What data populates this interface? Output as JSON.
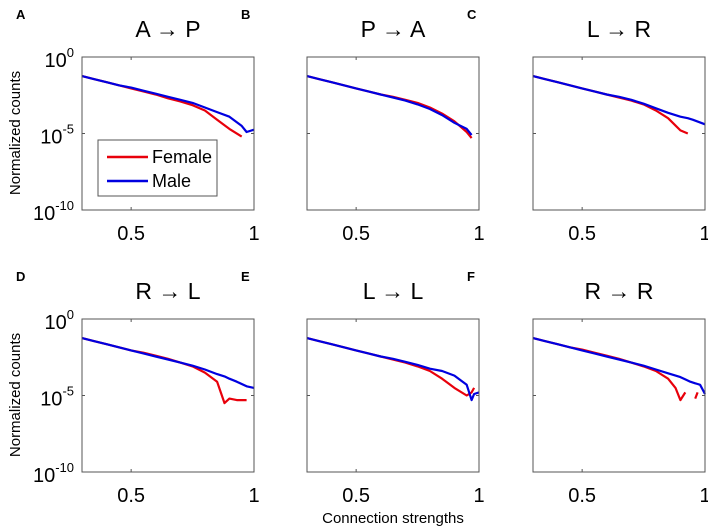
{
  "chart_data": [
    {
      "type": "line",
      "panel": "A",
      "title": "A → P",
      "xlim": [
        0.3,
        1
      ],
      "ylim_log10": [
        -10,
        0
      ],
      "yscale": "log",
      "x": [
        0.3,
        0.35,
        0.4,
        0.45,
        0.5,
        0.55,
        0.6,
        0.65,
        0.7,
        0.75,
        0.8,
        0.85,
        0.9,
        0.95,
        0.97,
        1.0
      ],
      "series": [
        {
          "name": "Female",
          "color": "#e8000b",
          "log10_values": [
            -1.25,
            -1.45,
            -1.65,
            -1.85,
            -2.05,
            -2.25,
            -2.45,
            -2.7,
            -2.9,
            -3.15,
            -3.5,
            -4.1,
            -4.7,
            -5.2,
            null,
            null
          ]
        },
        {
          "name": "Male",
          "color": "#0000e0",
          "log10_values": [
            -1.25,
            -1.45,
            -1.65,
            -1.85,
            -2.0,
            -2.2,
            -2.4,
            -2.6,
            -2.8,
            -3.0,
            -3.3,
            -3.6,
            -3.9,
            -4.5,
            -4.9,
            -4.75
          ]
        }
      ]
    },
    {
      "type": "line",
      "panel": "B",
      "title": "P → A",
      "xlim": [
        0.3,
        1
      ],
      "ylim_log10": [
        -10,
        0
      ],
      "yscale": "log",
      "x": [
        0.3,
        0.35,
        0.4,
        0.45,
        0.5,
        0.55,
        0.6,
        0.65,
        0.7,
        0.75,
        0.8,
        0.85,
        0.9,
        0.95,
        0.97,
        1.0
      ],
      "series": [
        {
          "name": "Female",
          "color": "#e8000b",
          "log10_values": [
            -1.25,
            -1.45,
            -1.65,
            -1.85,
            -2.05,
            -2.25,
            -2.45,
            -2.6,
            -2.8,
            -3.0,
            -3.3,
            -3.7,
            -4.2,
            -4.9,
            -5.3,
            null
          ]
        },
        {
          "name": "Male",
          "color": "#0000e0",
          "log10_values": [
            -1.25,
            -1.45,
            -1.65,
            -1.85,
            -2.05,
            -2.25,
            -2.45,
            -2.65,
            -2.85,
            -3.1,
            -3.4,
            -3.8,
            -4.3,
            -4.7,
            -5.1,
            null
          ]
        }
      ]
    },
    {
      "type": "line",
      "panel": "C",
      "title": "L → R",
      "xlim": [
        0.3,
        1
      ],
      "ylim_log10": [
        -10,
        0
      ],
      "yscale": "log",
      "x": [
        0.3,
        0.35,
        0.4,
        0.45,
        0.5,
        0.55,
        0.6,
        0.65,
        0.7,
        0.75,
        0.8,
        0.85,
        0.9,
        0.93,
        0.95,
        1.0
      ],
      "series": [
        {
          "name": "Female",
          "color": "#e8000b",
          "log10_values": [
            -1.25,
            -1.45,
            -1.65,
            -1.85,
            -2.05,
            -2.25,
            -2.45,
            -2.65,
            -2.85,
            -3.1,
            -3.5,
            -4.0,
            -4.8,
            -5.0,
            null,
            null
          ]
        },
        {
          "name": "Male",
          "color": "#0000e0",
          "log10_values": [
            -1.25,
            -1.45,
            -1.65,
            -1.85,
            -2.05,
            -2.25,
            -2.45,
            -2.6,
            -2.8,
            -3.05,
            -3.35,
            -3.65,
            -3.9,
            -4.0,
            -4.1,
            -4.4
          ]
        }
      ]
    },
    {
      "type": "line",
      "panel": "D",
      "title": "R → L",
      "xlim": [
        0.3,
        1
      ],
      "ylim_log10": [
        -10,
        0
      ],
      "yscale": "log",
      "x": [
        0.3,
        0.35,
        0.4,
        0.45,
        0.5,
        0.55,
        0.6,
        0.65,
        0.7,
        0.75,
        0.8,
        0.85,
        0.88,
        0.9,
        0.93,
        0.97,
        1.0
      ],
      "series": [
        {
          "name": "Female",
          "color": "#e8000b",
          "log10_values": [
            -1.25,
            -1.45,
            -1.65,
            -1.85,
            -2.05,
            -2.2,
            -2.4,
            -2.6,
            -2.85,
            -3.1,
            -3.5,
            -4.1,
            -5.5,
            -5.2,
            -5.3,
            -5.3,
            null
          ]
        },
        {
          "name": "Male",
          "color": "#0000e0",
          "log10_values": [
            -1.25,
            -1.45,
            -1.65,
            -1.85,
            -2.05,
            -2.25,
            -2.45,
            -2.65,
            -2.85,
            -3.05,
            -3.3,
            -3.6,
            -3.75,
            -3.9,
            -4.1,
            -4.4,
            -4.5
          ]
        }
      ]
    },
    {
      "type": "line",
      "panel": "E",
      "title": "L → L",
      "xlim": [
        0.3,
        1
      ],
      "ylim_log10": [
        -10,
        0
      ],
      "yscale": "log",
      "x": [
        0.3,
        0.35,
        0.4,
        0.45,
        0.5,
        0.55,
        0.6,
        0.65,
        0.7,
        0.75,
        0.8,
        0.85,
        0.9,
        0.95,
        0.97,
        0.98,
        1.0
      ],
      "series": [
        {
          "name": "Female",
          "color": "#e8000b",
          "log10_values": [
            -1.25,
            -1.45,
            -1.65,
            -1.85,
            -2.05,
            -2.25,
            -2.45,
            -2.65,
            -2.85,
            -3.1,
            -3.4,
            -3.9,
            -4.5,
            -5.0,
            -4.8,
            -4.5,
            null
          ]
        },
        {
          "name": "Male",
          "color": "#0000e0",
          "log10_values": [
            -1.25,
            -1.45,
            -1.65,
            -1.85,
            -2.05,
            -2.25,
            -2.45,
            -2.6,
            -2.8,
            -3.0,
            -3.25,
            -3.4,
            -3.7,
            -4.3,
            -5.3,
            -4.9,
            -4.8
          ]
        }
      ]
    },
    {
      "type": "line",
      "panel": "F",
      "title": "R → R",
      "xlim": [
        0.3,
        1
      ],
      "ylim_log10": [
        -10,
        0
      ],
      "yscale": "log",
      "x": [
        0.3,
        0.35,
        0.4,
        0.45,
        0.5,
        0.55,
        0.6,
        0.65,
        0.7,
        0.75,
        0.8,
        0.85,
        0.88,
        0.9,
        0.92,
        0.94,
        0.96,
        0.97,
        0.98,
        1.0
      ],
      "series": [
        {
          "name": "Female",
          "color": "#e8000b",
          "log10_values": [
            -1.25,
            -1.45,
            -1.65,
            -1.85,
            -2.0,
            -2.2,
            -2.4,
            -2.6,
            -2.85,
            -3.1,
            -3.4,
            -3.9,
            -4.5,
            -5.3,
            -4.8,
            null,
            -5.2,
            -4.8,
            null,
            null
          ]
        },
        {
          "name": "Male",
          "color": "#0000e0",
          "log10_values": [
            -1.25,
            -1.45,
            -1.65,
            -1.85,
            -2.05,
            -2.25,
            -2.45,
            -2.65,
            -2.85,
            -3.05,
            -3.3,
            -3.55,
            -3.7,
            -3.8,
            -3.95,
            -4.1,
            -4.2,
            -4.25,
            -4.3,
            -4.9
          ]
        }
      ]
    }
  ],
  "panel_labels": [
    "A",
    "B",
    "C",
    "D",
    "E",
    "F"
  ],
  "ylabel": "Normalized counts",
  "xlabel": "Connection strengths",
  "xtick_labels": [
    "0.5",
    "1"
  ],
  "ytick_labels": [
    {
      "base": "10",
      "exp": "0"
    },
    {
      "base": "10",
      "exp": "-5"
    },
    {
      "base": "10",
      "exp": "-10"
    }
  ],
  "legend": [
    "Female",
    "Male"
  ]
}
